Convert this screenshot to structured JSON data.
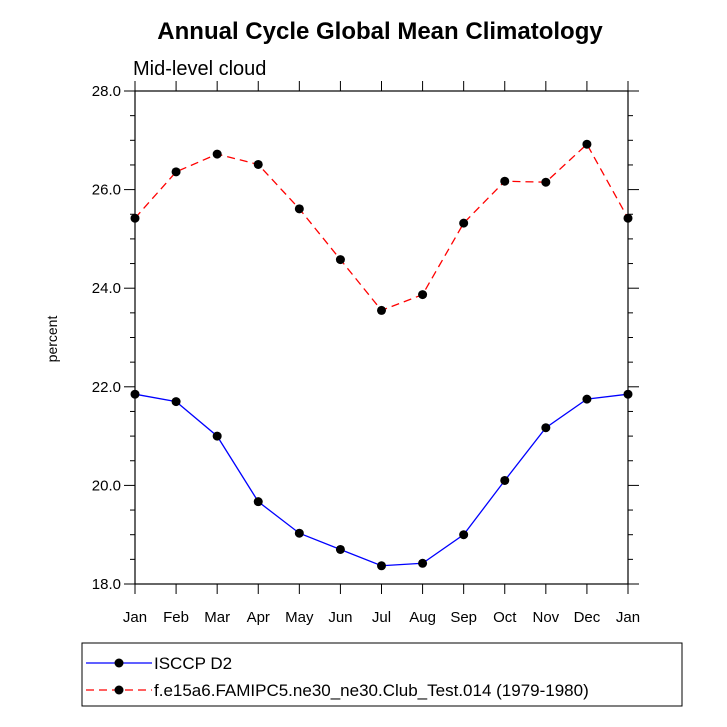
{
  "chart_data": {
    "type": "line",
    "title": "Annual Cycle Global Mean Climatology",
    "subtitle": "Mid-level cloud",
    "xlabel": "",
    "ylabel": "percent",
    "categories": [
      "Jan",
      "Feb",
      "Mar",
      "Apr",
      "May",
      "Jun",
      "Jul",
      "Aug",
      "Sep",
      "Oct",
      "Nov",
      "Dec",
      "Jan"
    ],
    "ylim": [
      18.0,
      28.0
    ],
    "yticks": [
      "18.0",
      "20.0",
      "22.0",
      "24.0",
      "26.0",
      "28.0"
    ],
    "ytick_values": [
      18,
      20,
      22,
      24,
      26,
      28
    ],
    "grid": false,
    "legend_position": "bottom",
    "series": [
      {
        "name": "ISCCP D2",
        "color": "#0000ff",
        "line_style": "solid",
        "marker": "filled-circle",
        "values": [
          21.85,
          21.7,
          21.0,
          19.67,
          19.03,
          18.7,
          18.37,
          18.42,
          19.0,
          20.1,
          21.17,
          21.75,
          21.85
        ]
      },
      {
        "name": "f.e15a6.FAMIPC5.ne30_ne30.Club_Test.014 (1979-1980)",
        "color": "#ff0000",
        "line_style": "dashed",
        "marker": "filled-circle",
        "values": [
          25.42,
          26.36,
          26.72,
          26.51,
          25.61,
          24.58,
          23.55,
          23.87,
          25.32,
          26.17,
          26.15,
          26.92,
          25.42
        ]
      }
    ]
  }
}
